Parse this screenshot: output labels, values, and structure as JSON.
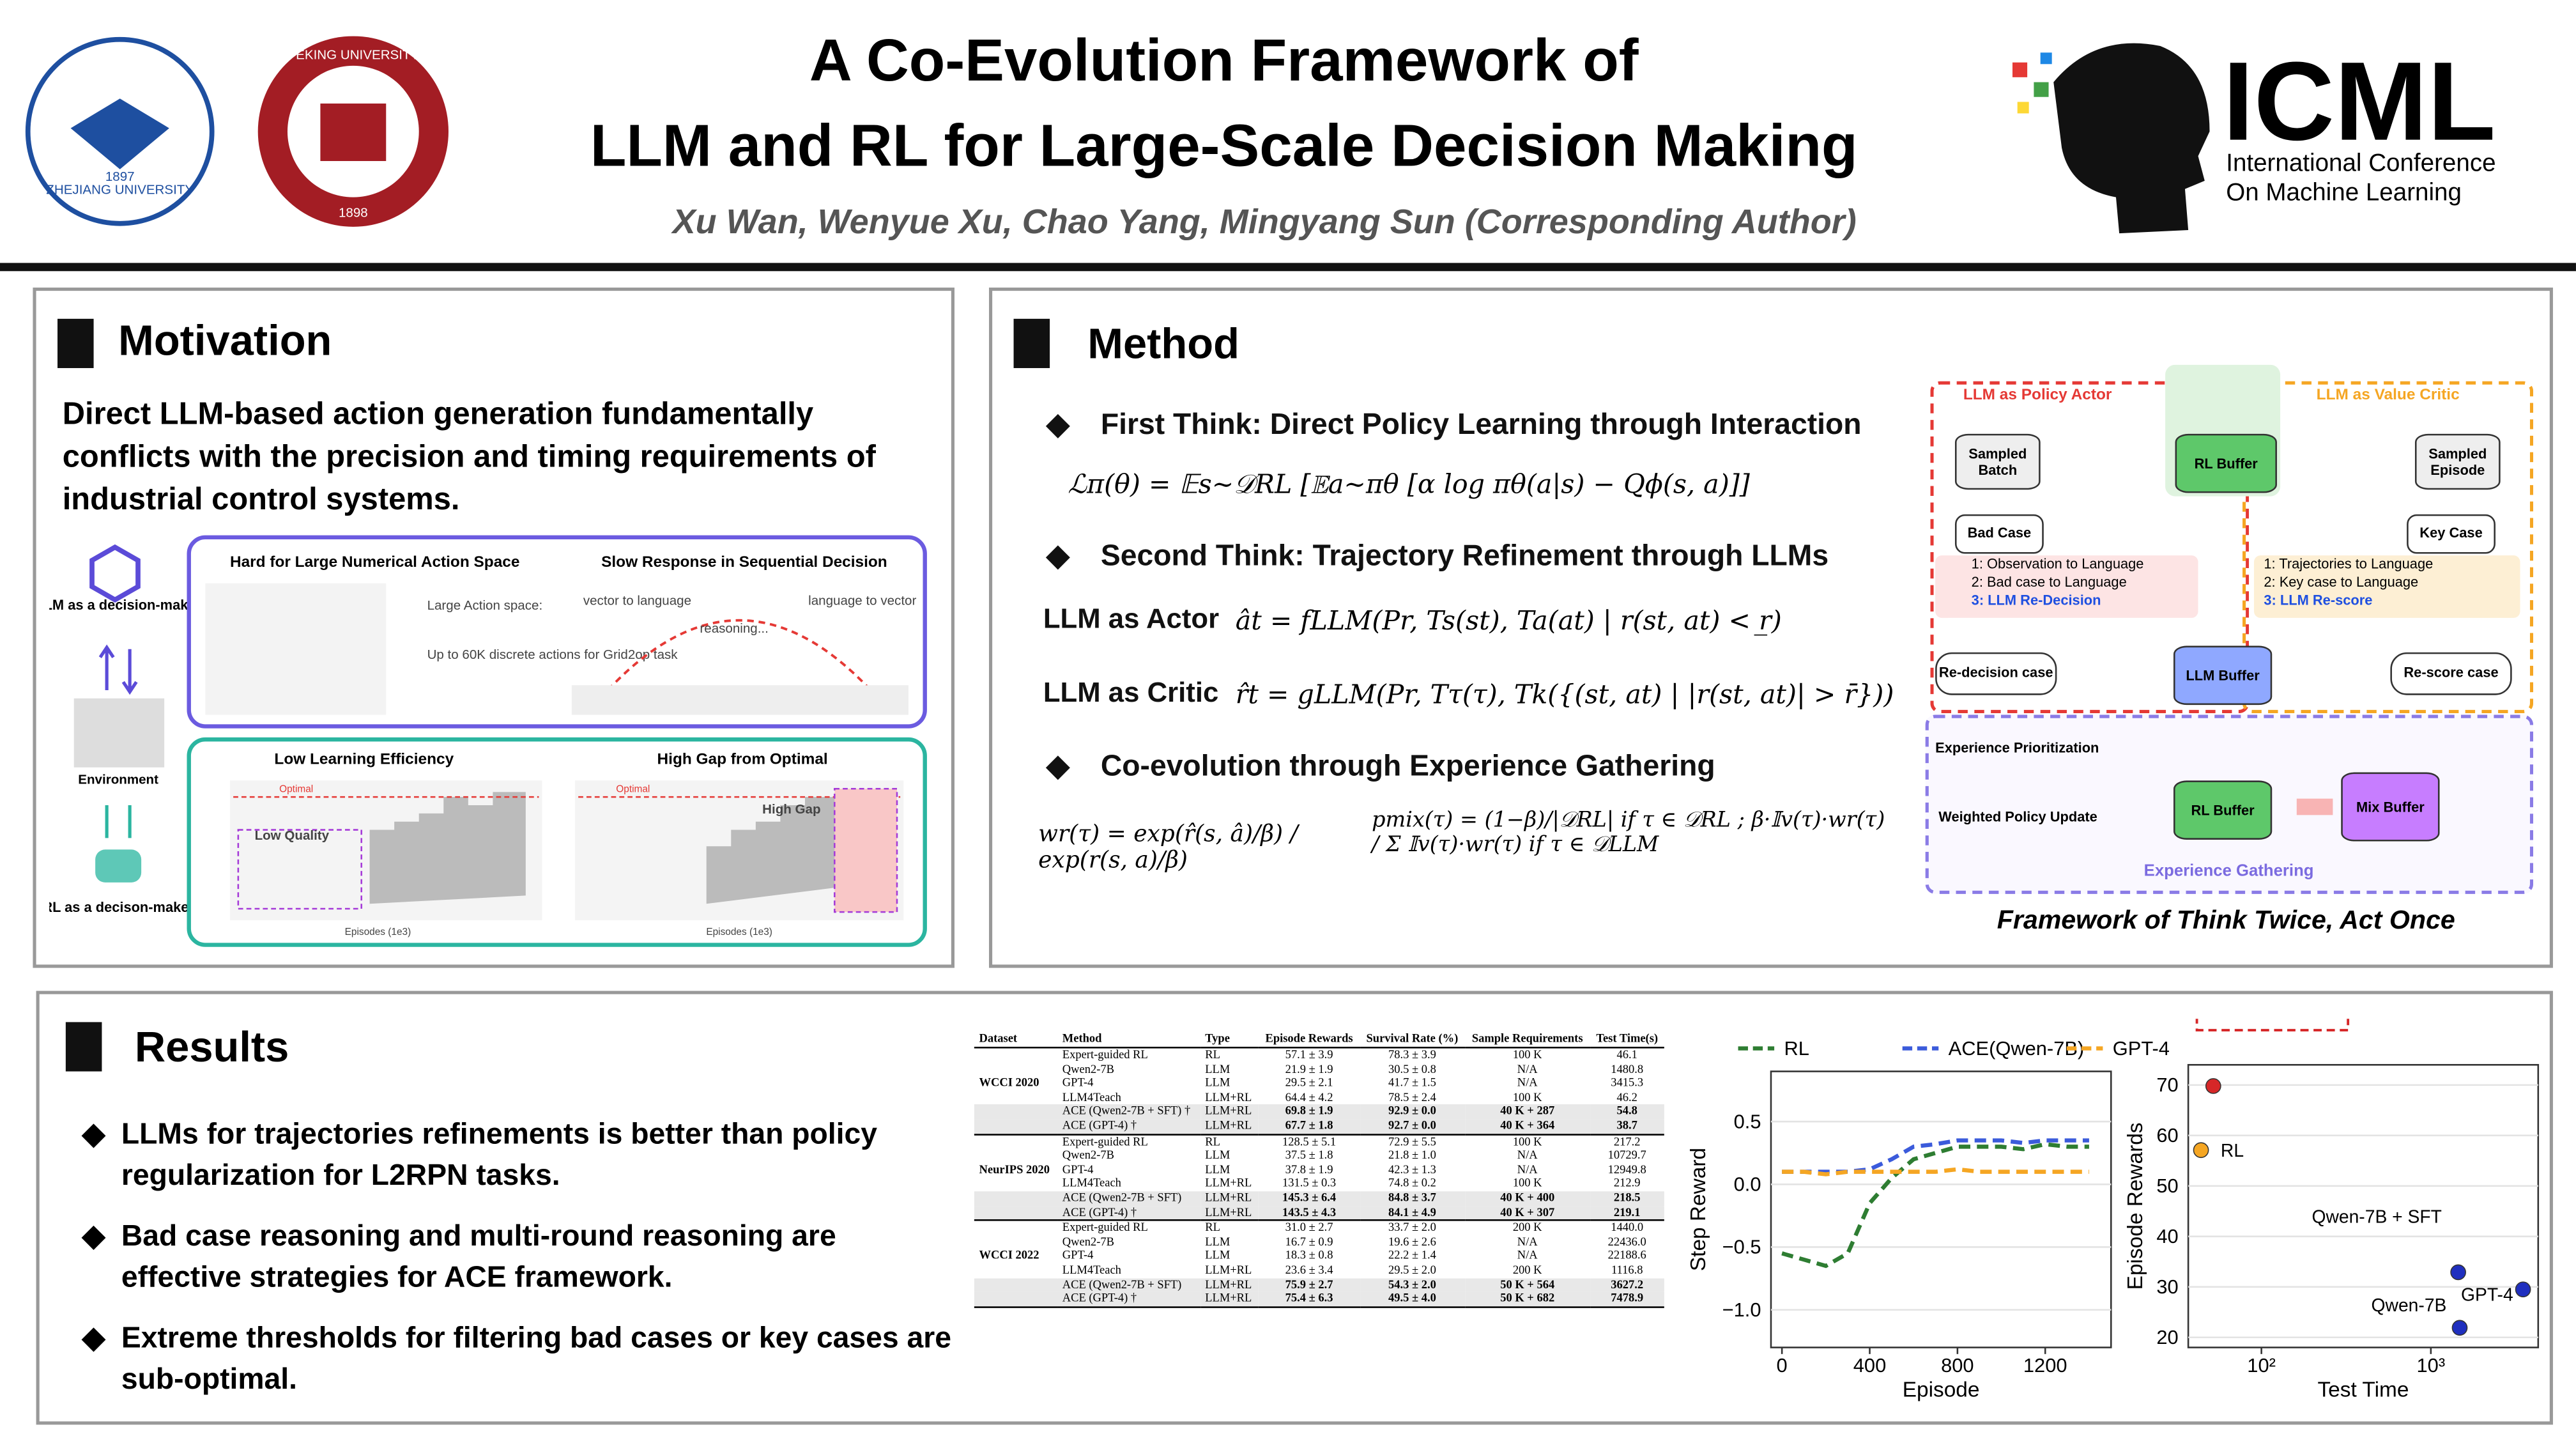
{
  "header": {
    "title_line1": "A Co-Evolution Framework of",
    "title_line2": "LLM and RL for Large-Scale Decision Making",
    "authors": "Xu Wan, Wenyue Xu, Chao Yang, Mingyang Sun (Corresponding Author)",
    "zju": "ZHEJIANG UNIVERSITY",
    "zju_year": "1897",
    "pku": "PEKING UNIVERSITY",
    "pku_year": "1898",
    "icml": "ICML",
    "icml_sub1": "International Conference",
    "icml_sub2": "On Machine Learning"
  },
  "motivation": {
    "heading": "Motivation",
    "text": "Direct LLM-based action generation fundamentally conflicts with the precision and timing requirements of industrial control systems.",
    "llm_maker": "LLM as a decision-maker",
    "environment": "Environment",
    "rl_maker": "RL as a decison-maker",
    "box1_title": "Hard for Large Numerical Action Space",
    "action_space": "Large Action space:",
    "action_note": "Up to 60K discrete actions for Grid2op task",
    "box2_title": "Slow Response in Sequential Decision",
    "v2l": "vector to language",
    "reasoning": "reasoning...",
    "l2v": "language to vector",
    "box3_title": "Low Learning Efficiency",
    "low_quality": "Low Quality",
    "box4_title": "High Gap from Optimal",
    "high_gap": "High Gap",
    "optimal": "Optimal",
    "episodes": "Episodes (1e3)"
  },
  "method": {
    "heading": "Method",
    "bullet1": "First Think: Direct Policy Learning through Interaction",
    "formula1": "ℒπ(θ) = 𝔼s∼𝒟RL [𝔼a∼πθ [α log πθ(a|s) − Qϕ(s, a)]]",
    "bullet2": "Second Think: Trajectory Refinement through LLMs",
    "actor": "LLM as Actor",
    "formula_actor": "ât = fLLM(Pr, Ts(st), Ta(at) | r(st, at) < r̲)",
    "critic": "LLM as Critic",
    "formula_critic": "r̂t = gLLM(Pr, Tτ(τ), Tk({(st, at) | |r(st, at)| > r̄}))",
    "bullet3": "Co-evolution through Experience Gathering",
    "formula_w": "wr(τ) = exp(r̂(s, â)/β) / exp(r(s, a)/β)",
    "formula_p": "pmix(τ) = (1−β)/|𝒟RL| if τ ∈ 𝒟RL ; β·𝕀v(τ)·wr(τ) / Σ 𝕀v(τ)·wr(τ) if τ ∈ 𝒟LLM",
    "diagram": {
      "actor_title": "LLM as Policy Actor",
      "critic_title": "LLM as Value Critic",
      "sampled_batch": "Sampled Batch",
      "rl_buffer": "RL Buffer",
      "sampled_episode": "Sampled Episode",
      "bad_case": "Bad Case",
      "key_case": "Key Case",
      "a1": "1: Observation to Language",
      "a2": "2: Bad case to Language",
      "a3": "3: LLM Re-Decision",
      "c1": "1: Trajectories to Language",
      "c2": "2: Key case to Language",
      "c3": "3: LLM Re-score",
      "redecision": "Re-decision case",
      "llm_buffer": "LLM Buffer",
      "rescore": "Re-score case",
      "prioritization": "Experience Prioritization",
      "weighted": "Weighted Policy Update",
      "rl_buffer2": "RL Buffer",
      "mix_buffer": "Mix Buffer",
      "gathering": "Experience Gathering"
    },
    "caption": "Framework of Think Twice, Act Once"
  },
  "results": {
    "heading": "Results",
    "bullets": [
      "LLMs for trajectories refinements is better than policy regularization for L2RPN tasks.",
      "Bad case reasoning and multi-round reasoning are effective strategies for ACE framework.",
      "Extreme thresholds for filtering bad cases or key cases are sub-optimal."
    ],
    "table": {
      "columns": [
        "Dataset",
        "Method",
        "Type",
        "Episode Rewards",
        "Survival Rate (%)",
        "Sample Requirements",
        "Test Time(s)"
      ],
      "groups": [
        {
          "dataset": "WCCI 2020",
          "rows": [
            [
              "Expert-guided RL",
              "RL",
              "57.1 ± 3.9",
              "78.3 ± 3.9",
              "100 K",
              "46.1"
            ],
            [
              "Qwen2-7B",
              "LLM",
              "21.9 ± 1.9",
              "30.5 ± 0.8",
              "N/A",
              "1480.8"
            ],
            [
              "GPT-4",
              "LLM",
              "29.5 ± 2.1",
              "41.7 ± 1.5",
              "N/A",
              "3415.3"
            ],
            [
              "LLM4Teach",
              "LLM+RL",
              "64.4 ± 4.2",
              "78.5 ± 2.4",
              "100 K",
              "46.2"
            ],
            [
              "ACE (Qwen2-7B + SFT) †",
              "LLM+RL",
              "69.8 ± 1.9",
              "92.9 ± 0.0",
              "40 K + 287",
              "54.8"
            ],
            [
              "ACE (GPT-4) †",
              "LLM+RL",
              "67.7 ± 1.8",
              "92.7 ± 0.0",
              "40 K + 364",
              "38.7"
            ]
          ]
        },
        {
          "dataset": "NeurIPS 2020",
          "rows": [
            [
              "Expert-guided RL",
              "RL",
              "128.5 ± 5.1",
              "72.9 ± 5.5",
              "100 K",
              "217.2"
            ],
            [
              "Qwen2-7B",
              "LLM",
              "37.5 ± 1.8",
              "21.8 ± 1.0",
              "N/A",
              "10729.7"
            ],
            [
              "GPT-4",
              "LLM",
              "37.8 ± 1.9",
              "42.3 ± 1.3",
              "N/A",
              "12949.8"
            ],
            [
              "LLM4Teach",
              "LLM+RL",
              "131.5 ± 0.3",
              "74.8 ± 0.2",
              "100 K",
              "212.9"
            ],
            [
              "ACE (Qwen2-7B + SFT)",
              "LLM+RL",
              "145.3 ± 6.4",
              "84.8 ± 3.7",
              "40 K + 400",
              "218.5"
            ],
            [
              "ACE (GPT-4) †",
              "LLM+RL",
              "143.5 ± 4.3",
              "84.1 ± 4.9",
              "40 K + 307",
              "219.1"
            ]
          ]
        },
        {
          "dataset": "WCCI 2022",
          "rows": [
            [
              "Expert-guided RL",
              "RL",
              "31.0 ± 2.7",
              "33.7 ± 2.0",
              "200 K",
              "1440.0"
            ],
            [
              "Qwen2-7B",
              "LLM",
              "16.7 ± 0.9",
              "19.6 ± 2.6",
              "N/A",
              "22436.0"
            ],
            [
              "GPT-4",
              "LLM",
              "18.3 ± 0.8",
              "22.2 ± 1.4",
              "N/A",
              "22188.6"
            ],
            [
              "LLM4Teach",
              "LLM+RL",
              "23.6 ± 3.4",
              "29.5 ± 2.0",
              "200 K",
              "1116.8"
            ],
            [
              "ACE (Qwen2-7B + SFT)",
              "LLM+RL",
              "75.9 ± 2.7",
              "54.3 ± 2.0",
              "50 K + 564",
              "3627.2"
            ],
            [
              "ACE (GPT-4) †",
              "LLM+RL",
              "75.4 ± 6.3",
              "49.5 ± 4.0",
              "50 K + 682",
              "7478.9"
            ]
          ]
        }
      ]
    }
  },
  "chart_data": [
    {
      "type": "line",
      "x_label": "Episode",
      "y_label": "Step Reward",
      "x": [
        0,
        100,
        200,
        300,
        400,
        500,
        600,
        700,
        800,
        900,
        1000,
        1100,
        1200,
        1300,
        1400
      ],
      "series": [
        {
          "name": "RL",
          "color": "#2e7d32",
          "values": [
            -0.55,
            -0.6,
            -0.65,
            -0.55,
            -0.15,
            0.05,
            0.2,
            0.25,
            0.3,
            0.3,
            0.3,
            0.28,
            0.32,
            0.3,
            0.3
          ]
        },
        {
          "name": "ACE(Qwen-7B)",
          "color": "#3b5bdb",
          "values": [
            0.1,
            0.1,
            0.1,
            0.1,
            0.12,
            0.2,
            0.3,
            0.32,
            0.35,
            0.35,
            0.35,
            0.33,
            0.35,
            0.35,
            0.35
          ]
        },
        {
          "name": "GPT-4",
          "color": "#f5a623",
          "values": [
            0.1,
            0.1,
            0.08,
            0.1,
            0.1,
            0.1,
            0.1,
            0.1,
            0.12,
            0.1,
            0.1,
            0.1,
            0.1,
            0.1,
            0.1
          ]
        }
      ],
      "xlim": [
        -50,
        1500
      ],
      "ylim": [
        -1.3,
        0.9
      ],
      "xticks": [
        0,
        400,
        800,
        1200
      ],
      "yticks": [
        {
          "value": -1,
          "label": "−1.0"
        },
        {
          "value": -0.5,
          "label": "−0.5"
        },
        {
          "value": 0,
          "label": "0.0"
        },
        0.5
      ],
      "grid": true
    },
    {
      "type": "scatter",
      "x_label": "Test Time",
      "y_label": "Episode Rewards",
      "log_x": true,
      "points": [
        {
          "name": "ACE (Qwen-7B)",
          "x": 52,
          "y": 69.8,
          "color": "#d62728"
        },
        {
          "name": "RL",
          "x": 44,
          "y": 57.1,
          "color": "#f5a623"
        },
        {
          "name": "Qwen-7B + SFT",
          "x": 1450,
          "y": 32.9,
          "color": "#1f2fbf"
        },
        {
          "name": "GPT-4",
          "x": 3500,
          "y": 29.5,
          "color": "#1f2fbf"
        },
        {
          "name": "Qwen-7B",
          "x": 1480,
          "y": 21.9,
          "color": "#1f2fbf"
        }
      ],
      "xlim": [
        37,
        4300
      ],
      "ylim": [
        18,
        74
      ],
      "xticks": [
        {
          "value": 100,
          "label": "10²"
        },
        {
          "value": 1000,
          "label": "10³"
        }
      ],
      "yticks": [
        20,
        30,
        40,
        50,
        60,
        70
      ],
      "grid": true
    }
  ]
}
